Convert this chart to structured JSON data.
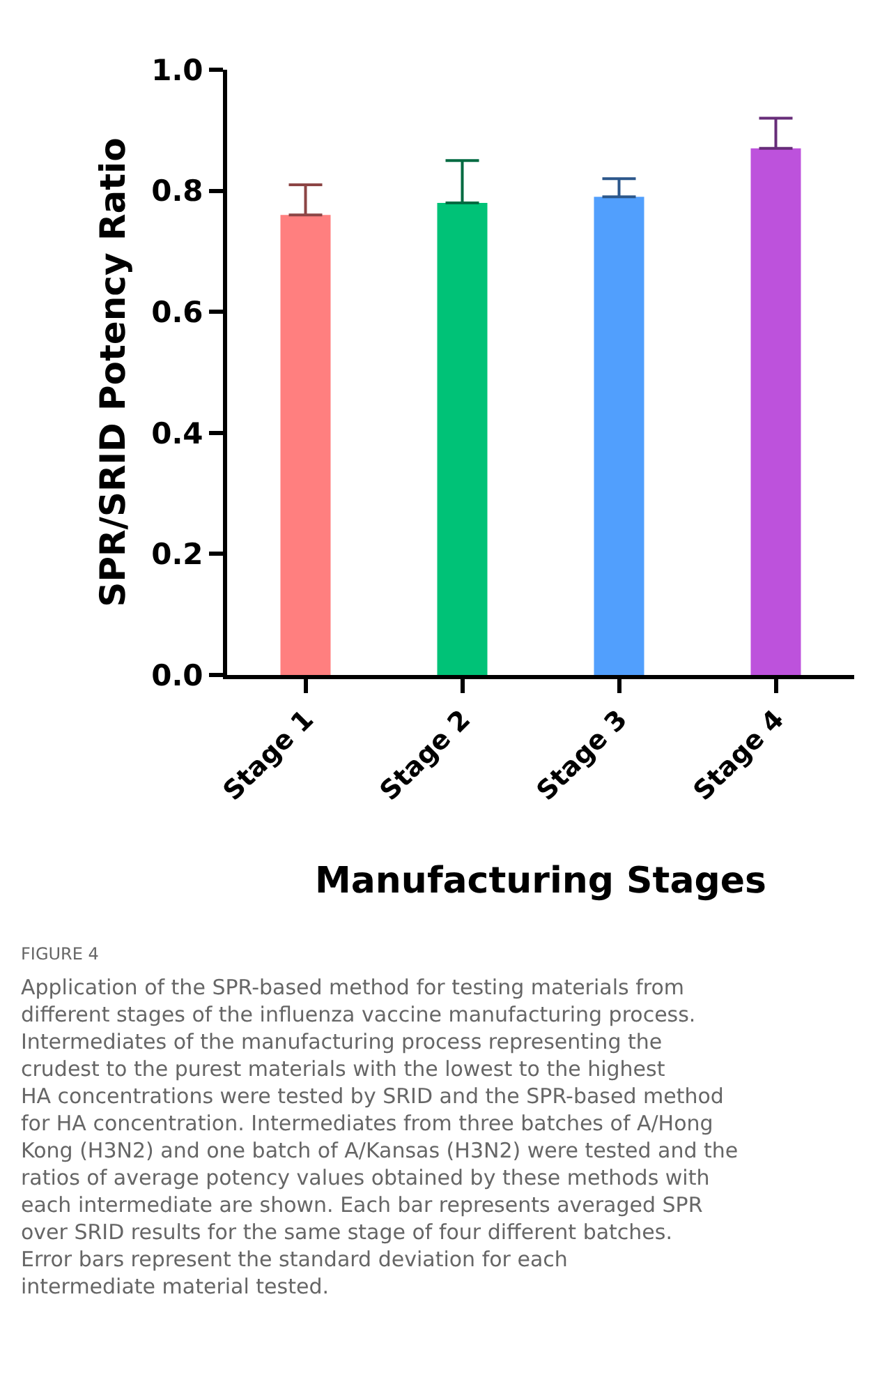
{
  "chart_data": {
    "type": "bar",
    "categories": [
      "Stage 1",
      "Stage 2",
      "Stage 3",
      "Stage 4"
    ],
    "values": [
      0.76,
      0.78,
      0.79,
      0.87
    ],
    "errors": [
      [
        0.76,
        0.81
      ],
      [
        0.78,
        0.85
      ],
      [
        0.79,
        0.82
      ],
      [
        0.87,
        0.92
      ]
    ],
    "colors": [
      "#ff7f7f",
      "#00c277",
      "#519ffd",
      "#bd52dc"
    ],
    "xlabel": "Manufacturing Stages",
    "ylabel": "SPR/SRID Potency Ratio",
    "ylim": [
      0,
      1.0
    ],
    "yticks": [
      {
        "value": 0,
        "label": "0.0"
      },
      {
        "value": 0.2,
        "label": "0.2"
      },
      {
        "value": 0.4,
        "label": "0.4"
      },
      {
        "value": 0.6,
        "label": "0.6"
      },
      {
        "value": 0.8,
        "label": "0.8"
      },
      {
        "value": 1.0,
        "label": "1.0"
      }
    ],
    "annotations": [
      "FIGURE 4",
      "Application of the SPR-based method for testing materials from different stages of the influenza vaccine manufacturing process. Intermediates of the manufacturing process representing the crudest to the purest materials with the lowest to the highest HA concentrations were tested by SRID and the SPR-based method for HA concentration. Intermediates from three batches of A/Hong Kong (H3N2) and one batch of A/Kansas (H3N2) were tested and the ratios of average potency values obtained by these methods with each intermediate are shown. Each bar represents averaged SPR over SRID results for the same stage of four different batches. Error bars represent the standard deviation for each intermediate material tested."
    ]
  }
}
